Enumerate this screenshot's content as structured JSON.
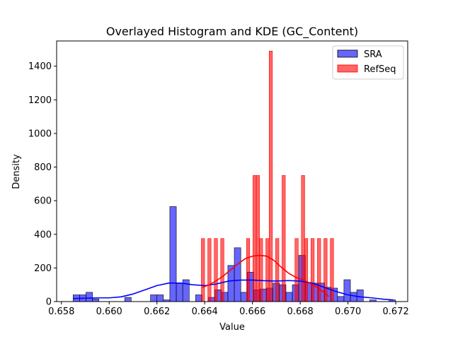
{
  "chart_data": {
    "type": "bar",
    "title": "Overlayed Histogram and KDE (GC_Content)",
    "xlabel": "Value",
    "ylabel": "Density",
    "xlim": [
      0.6578,
      0.6725
    ],
    "ylim": [
      0,
      1550
    ],
    "xticks": [
      0.658,
      0.66,
      0.662,
      0.664,
      0.666,
      0.668,
      0.67,
      0.672
    ],
    "xtick_labels": [
      "0.658",
      "0.660",
      "0.662",
      "0.664",
      "0.666",
      "0.668",
      "0.670",
      "0.672"
    ],
    "yticks": [
      0,
      200,
      400,
      600,
      800,
      1000,
      1200,
      1400
    ],
    "ytick_labels": [
      "0",
      "200",
      "400",
      "600",
      "800",
      "1000",
      "1200",
      "1400"
    ],
    "grid": false,
    "legend": "top-right",
    "series": [
      {
        "name": "SRA",
        "color": "#0000ff",
        "bin_width": 0.000271,
        "bins": [
          [
            0.65849,
            40
          ],
          [
            0.65876,
            40
          ],
          [
            0.65903,
            55
          ],
          [
            0.6593,
            15
          ],
          [
            0.66065,
            25
          ],
          [
            0.66173,
            40
          ],
          [
            0.662,
            40
          ],
          [
            0.66227,
            10
          ],
          [
            0.66254,
            565
          ],
          [
            0.66281,
            110
          ],
          [
            0.66308,
            130
          ],
          [
            0.66362,
            40
          ],
          [
            0.66416,
            25
          ],
          [
            0.66443,
            70
          ],
          [
            0.6647,
            55
          ],
          [
            0.66497,
            215
          ],
          [
            0.66524,
            320
          ],
          [
            0.66551,
            55
          ],
          [
            0.66578,
            175
          ],
          [
            0.66605,
            70
          ],
          [
            0.66632,
            75
          ],
          [
            0.66659,
            80
          ],
          [
            0.66686,
            110
          ],
          [
            0.66713,
            100
          ],
          [
            0.6674,
            55
          ],
          [
            0.66767,
            100
          ],
          [
            0.66794,
            275
          ],
          [
            0.66821,
            110
          ],
          [
            0.66848,
            110
          ],
          [
            0.66875,
            110
          ],
          [
            0.66902,
            85
          ],
          [
            0.66929,
            80
          ],
          [
            0.66956,
            30
          ],
          [
            0.66983,
            130
          ],
          [
            0.6701,
            55
          ],
          [
            0.67037,
            70
          ],
          [
            0.67091,
            10
          ],
          [
            0.67172,
            10
          ]
        ],
        "kde": [
          [
            0.6585,
            18
          ],
          [
            0.659,
            20
          ],
          [
            0.6595,
            22
          ],
          [
            0.66,
            22
          ],
          [
            0.6605,
            28
          ],
          [
            0.661,
            45
          ],
          [
            0.6615,
            70
          ],
          [
            0.662,
            95
          ],
          [
            0.6625,
            110
          ],
          [
            0.663,
            110
          ],
          [
            0.6635,
            100
          ],
          [
            0.664,
            95
          ],
          [
            0.6645,
            105
          ],
          [
            0.665,
            122
          ],
          [
            0.6655,
            128
          ],
          [
            0.666,
            128
          ],
          [
            0.6665,
            124
          ],
          [
            0.667,
            122
          ],
          [
            0.6675,
            125
          ],
          [
            0.668,
            122
          ],
          [
            0.6685,
            110
          ],
          [
            0.669,
            85
          ],
          [
            0.6695,
            60
          ],
          [
            0.67,
            40
          ],
          [
            0.6705,
            28
          ],
          [
            0.671,
            22
          ],
          [
            0.6715,
            14
          ],
          [
            0.6719,
            10
          ]
        ]
      },
      {
        "name": "RefSeq",
        "color": "#ff0000",
        "bin_width": 0.000135,
        "bins": [
          [
            0.66386,
            375
          ],
          [
            0.66413,
            375
          ],
          [
            0.6644,
            375
          ],
          [
            0.66467,
            375
          ],
          [
            0.66575,
            375
          ],
          [
            0.66602,
            750
          ],
          [
            0.66616,
            750
          ],
          [
            0.66629,
            375
          ],
          [
            0.66656,
            375
          ],
          [
            0.6667,
            1490
          ],
          [
            0.66697,
            375
          ],
          [
            0.66724,
            750
          ],
          [
            0.66778,
            375
          ],
          [
            0.66805,
            750
          ],
          [
            0.66818,
            375
          ],
          [
            0.66845,
            375
          ],
          [
            0.66872,
            375
          ],
          [
            0.66899,
            375
          ],
          [
            0.66926,
            375
          ]
        ],
        "kde": [
          [
            0.6639,
            85
          ],
          [
            0.6642,
            100
          ],
          [
            0.6645,
            125
          ],
          [
            0.6648,
            155
          ],
          [
            0.6651,
            190
          ],
          [
            0.6654,
            225
          ],
          [
            0.6657,
            255
          ],
          [
            0.666,
            270
          ],
          [
            0.6663,
            275
          ],
          [
            0.6666,
            270
          ],
          [
            0.6669,
            245
          ],
          [
            0.6672,
            205
          ],
          [
            0.6675,
            170
          ],
          [
            0.6678,
            145
          ],
          [
            0.6681,
            130
          ],
          [
            0.6684,
            110
          ],
          [
            0.6687,
            85
          ],
          [
            0.669,
            55
          ],
          [
            0.6692,
            30
          ]
        ]
      }
    ]
  }
}
